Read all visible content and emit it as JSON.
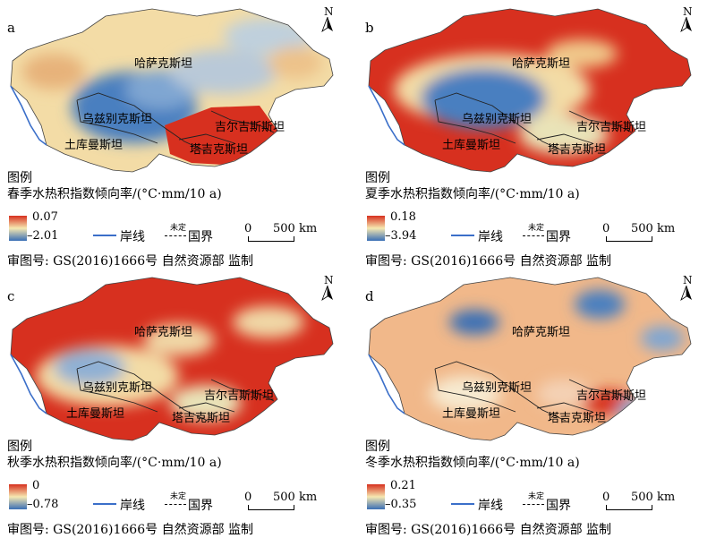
{
  "map_data": {
    "countries": [
      "哈萨克斯坦",
      "乌兹别克斯坦",
      "土库曼斯坦",
      "吉尔吉斯斯坦",
      "塔吉克斯坦"
    ],
    "north_arrow": "N",
    "legend": {
      "title": "图例",
      "coastline_label": "岸线",
      "border_label": "国界",
      "undefined_label": "未定",
      "scale_zero": "0",
      "scale_label": "500 km",
      "approval": "审图号: GS(2016)1666号  自然资源部 监制",
      "colors": {
        "high": "#d7301f",
        "mid": "#f6e8b1",
        "low": "#3a6fb5",
        "coast": "#3b6fc9"
      }
    },
    "panels": [
      {
        "letter": "a",
        "subtitle": "春季水热积指数倾向率/(°C·mm/10 a)",
        "max": "0.07",
        "min": "–2.01"
      },
      {
        "letter": "b",
        "subtitle": "夏季水热积指数倾向率/(°C·mm/10 a)",
        "max": "0.18",
        "min": "–3.94"
      },
      {
        "letter": "c",
        "subtitle": "秋季水热积指数倾向率/(°C·mm/10 a)",
        "max": "0",
        "min": "–0.78"
      },
      {
        "letter": "d",
        "subtitle": "冬季水热积指数倾向率/(°C·mm/10 a)",
        "max": "0.21",
        "min": "–0.35"
      }
    ]
  }
}
